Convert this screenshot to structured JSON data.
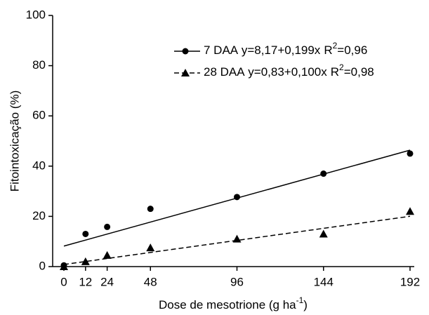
{
  "chart_data": {
    "type": "scatter",
    "x_label": {
      "text": "Dose de mesotrione (g ha",
      "sup": "-1",
      "end": ")"
    },
    "y_label": "Fitointoxicação (%)",
    "x": [
      0,
      12,
      24,
      48,
      96,
      144,
      192
    ],
    "xlim": [
      -6,
      194
    ],
    "xticks": [
      0,
      12,
      24,
      48,
      96,
      144,
      192
    ],
    "ylim": [
      0,
      100
    ],
    "yticks": [
      0,
      20,
      40,
      60,
      80,
      100
    ],
    "series": [
      {
        "name": "7 DAA",
        "marker": "circle",
        "dash": false,
        "color": "#000000",
        "values": [
          0.5,
          13,
          15.8,
          23,
          27.7,
          37,
          45
        ],
        "equation": "y=8,17+0,199x",
        "r2_label": "R",
        "r2_sup": "2",
        "r2_value": "=0,96",
        "fit": {
          "intercept": 8.17,
          "slope": 0.199
        }
      },
      {
        "name": "28 DAA",
        "marker": "triangle",
        "dash": true,
        "color": "#000000",
        "values": [
          0,
          2,
          4.5,
          7.5,
          11,
          13,
          22
        ],
        "equation": "y=0,83+0,100x",
        "r2_label": "R",
        "r2_sup": "2",
        "r2_value": "=0,98",
        "fit": {
          "intercept": 0.83,
          "slope": 0.1
        }
      }
    ]
  }
}
